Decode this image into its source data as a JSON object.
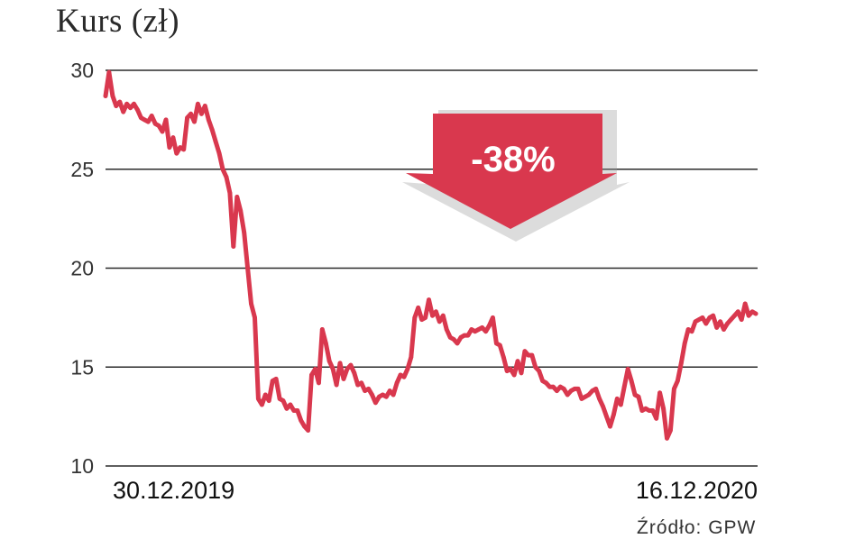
{
  "title": "Kurs (zł)",
  "source": "Źródło: GPW",
  "colors": {
    "line": "#d9384e",
    "grid": "#2a2a2a",
    "arrow": "#d9384e",
    "text": "#222222"
  },
  "chart_data": {
    "type": "line",
    "title": "Kurs (zł)",
    "xlabel": "",
    "ylabel": "",
    "ylim": [
      10,
      30
    ],
    "yticks": [
      10,
      15,
      20,
      25,
      30
    ],
    "grid": true,
    "x_start_label": "30.12.2019",
    "x_end_label": "16.12.2020",
    "annotation": "-38%",
    "series": [
      {
        "values": [
          28.7,
          29.9,
          28.7,
          28.2,
          28.4,
          27.9,
          28.3,
          28.1,
          28.3,
          28.0,
          27.6,
          27.5,
          27.4,
          27.7,
          27.3,
          27.2,
          26.9,
          27.5,
          26.1,
          26.6,
          25.8,
          26.1,
          26.0,
          27.6,
          27.8,
          27.4,
          28.3,
          27.8,
          28.2,
          27.5,
          27.0,
          26.4,
          25.8,
          25.0,
          24.6,
          23.8,
          21.1,
          23.6,
          22.9,
          21.8,
          20.0,
          18.2,
          17.5,
          13.4,
          13.1,
          13.6,
          13.3,
          14.3,
          14.4,
          13.4,
          13.3,
          12.9,
          13.1,
          12.8,
          12.8,
          12.3,
          12.0,
          11.8,
          14.6,
          14.9,
          14.2,
          16.9,
          16.2,
          15.3,
          14.9,
          14.1,
          15.2,
          14.4,
          14.9,
          15.1,
          14.7,
          14.1,
          14.2,
          13.8,
          13.9,
          13.6,
          13.2,
          13.5,
          13.6,
          13.5,
          13.8,
          13.6,
          14.2,
          14.6,
          14.5,
          14.9,
          15.5,
          17.5,
          18.0,
          17.4,
          17.5,
          18.4,
          17.6,
          17.8,
          17.3,
          17.6,
          16.9,
          16.5,
          16.4,
          16.2,
          16.5,
          16.6,
          16.6,
          16.9,
          16.8,
          16.9,
          17.0,
          16.8,
          17.1,
          17.5,
          16.2,
          16.1,
          15.5,
          14.8,
          14.9,
          14.6,
          15.3,
          14.7,
          15.8,
          15.6,
          15.6,
          15.0,
          14.8,
          14.3,
          14.2,
          14.0,
          14.0,
          13.8,
          14.0,
          13.9,
          13.6,
          13.8,
          13.9,
          13.9,
          13.4,
          13.5,
          13.6,
          13.8,
          13.9,
          13.4,
          13.0,
          12.5,
          12.0,
          12.6,
          13.4,
          13.1,
          14.0,
          14.9,
          14.3,
          13.6,
          13.5,
          12.8,
          12.9,
          12.8,
          12.8,
          12.4,
          13.7,
          12.9,
          11.4,
          11.8,
          13.9,
          14.3,
          15.2,
          16.2,
          16.9,
          16.8,
          17.3,
          17.4,
          17.5,
          17.2,
          17.5,
          17.6,
          17.0,
          17.3,
          16.9,
          17.2,
          17.4,
          17.6,
          17.8,
          17.4,
          18.2,
          17.6,
          17.8,
          17.7
        ]
      }
    ]
  }
}
